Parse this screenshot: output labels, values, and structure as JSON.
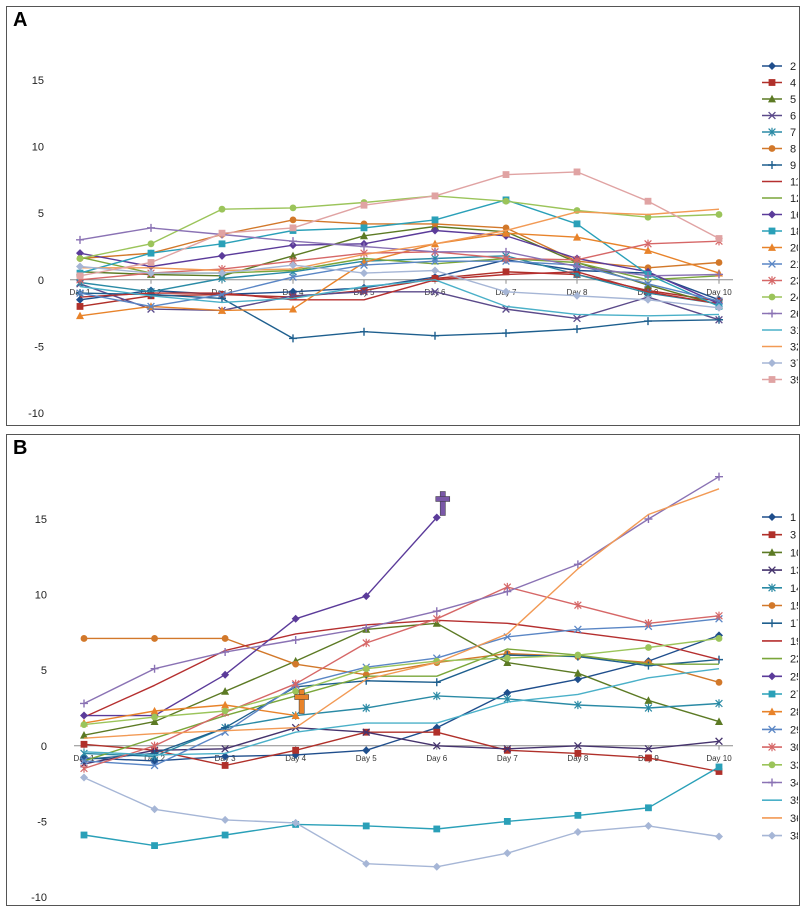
{
  "chart_data": [
    {
      "panel": "A",
      "type": "line",
      "categories": [
        "Day 1",
        "Day 2",
        "Day 3",
        "Day 4",
        "Day 5",
        "Day 6",
        "Day 7",
        "Day 8",
        "Day 9",
        "Day 10"
      ],
      "ylim": [
        -10,
        15
      ],
      "yticks": [
        -10,
        -5,
        0,
        5,
        10,
        15
      ],
      "grid": false,
      "legend": "right",
      "series": [
        {
          "name": "2",
          "color": "#1f4e8c",
          "marker": "diamond",
          "values": [
            -1.5,
            -0.8,
            -1.1,
            -0.9,
            -0.6,
            0.2,
            1.5,
            0.7,
            0.5,
            -1.5
          ]
        },
        {
          "name": "4",
          "color": "#b0302a",
          "marker": "square",
          "values": [
            -2.0,
            -1.2,
            -1.1,
            -1.3,
            -0.8,
            0.1,
            0.6,
            0.4,
            -0.8,
            -1.6
          ]
        },
        {
          "name": "5",
          "color": "#5c7a24",
          "marker": "triangle",
          "values": [
            0.6,
            0.4,
            0.3,
            1.8,
            3.3,
            4.0,
            3.6,
            1.3,
            -0.4,
            -1.9
          ]
        },
        {
          "name": "6",
          "color": "#5b4a8a",
          "marker": "x",
          "values": [
            -0.3,
            -2.2,
            -2.3,
            -1.2,
            -0.9,
            -0.9,
            -2.2,
            -2.9,
            -1.3,
            -3.0
          ]
        },
        {
          "name": "7",
          "color": "#2a8aa5",
          "marker": "star",
          "values": [
            -0.2,
            -0.9,
            0.1,
            0.6,
            1.4,
            1.6,
            1.8,
            0.4,
            -1.0,
            -1.8
          ]
        },
        {
          "name": "8",
          "color": "#d2782a",
          "marker": "circle",
          "values": [
            1.6,
            2.0,
            3.4,
            4.5,
            4.2,
            4.2,
            3.9,
            1.4,
            0.9,
            1.3
          ]
        },
        {
          "name": "9",
          "color": "#1e5f8e",
          "marker": "plus",
          "values": [
            -1.0,
            -1.1,
            -1.4,
            -4.4,
            -3.9,
            -4.2,
            -4.0,
            -3.7,
            -3.1,
            -3.0
          ]
        },
        {
          "name": "11",
          "color": "#b52f2f",
          "marker": "none",
          "values": [
            -1.3,
            -1.0,
            -1.0,
            -1.5,
            -1.5,
            0.0,
            0.4,
            0.6,
            -0.9,
            -1.8
          ]
        },
        {
          "name": "12",
          "color": "#7aa63a",
          "marker": "none",
          "values": [
            1.7,
            0.5,
            0.5,
            0.7,
            1.6,
            1.2,
            1.6,
            1.3,
            0.0,
            0.3
          ]
        },
        {
          "name": "16",
          "color": "#5b3b9a",
          "marker": "diamond",
          "values": [
            2.0,
            1.0,
            1.8,
            2.6,
            2.7,
            3.7,
            3.3,
            1.6,
            0.6,
            -1.8
          ]
        },
        {
          "name": "18",
          "color": "#2aa0b8",
          "marker": "square",
          "values": [
            0.5,
            2.0,
            2.7,
            3.7,
            3.9,
            4.5,
            6.0,
            4.2,
            0.4,
            -2.0
          ]
        },
        {
          "name": "20",
          "color": "#e8832a",
          "marker": "triangle",
          "values": [
            -2.7,
            -2.0,
            -2.3,
            -2.2,
            1.3,
            2.7,
            3.5,
            3.2,
            2.2,
            0.5
          ]
        },
        {
          "name": "21",
          "color": "#5a86c5",
          "marker": "x",
          "values": [
            -1.0,
            -2.0,
            -1.1,
            0.2,
            1.1,
            1.4,
            1.4,
            1.1,
            -0.3,
            -1.6
          ]
        },
        {
          "name": "23",
          "color": "#d66767",
          "marker": "star",
          "values": [
            0.0,
            0.5,
            0.8,
            1.4,
            2.0,
            2.1,
            1.6,
            1.5,
            2.7,
            2.9
          ]
        },
        {
          "name": "24",
          "color": "#9bc45a",
          "marker": "circle",
          "values": [
            1.6,
            2.7,
            5.3,
            5.4,
            5.8,
            6.3,
            5.9,
            5.2,
            4.7,
            4.9
          ]
        },
        {
          "name": "26",
          "color": "#8a72b4",
          "marker": "plus",
          "values": [
            3.0,
            3.9,
            3.4,
            2.9,
            2.5,
            2.1,
            2.1,
            1.0,
            0.3,
            0.4
          ]
        },
        {
          "name": "31",
          "color": "#4ab0c8",
          "marker": "none",
          "values": [
            -0.5,
            -1.2,
            -1.7,
            -1.4,
            -0.5,
            0.0,
            -2.0,
            -2.6,
            -2.7,
            -2.6
          ]
        },
        {
          "name": "32",
          "color": "#f29a55",
          "marker": "none",
          "values": [
            0.9,
            0.9,
            0.7,
            0.8,
            1.9,
            2.7,
            3.7,
            5.1,
            4.9,
            5.3
          ]
        },
        {
          "name": "37",
          "color": "#a6b6d6",
          "marker": "diamond",
          "values": [
            1.0,
            0.5,
            0.5,
            1.1,
            0.5,
            0.7,
            -0.9,
            -1.2,
            -1.5,
            -2.1
          ]
        },
        {
          "name": "39",
          "color": "#e0a3a3",
          "marker": "square",
          "values": [
            0.3,
            1.3,
            3.5,
            3.9,
            5.6,
            6.3,
            7.9,
            8.1,
            5.9,
            3.1
          ]
        }
      ]
    },
    {
      "panel": "B",
      "type": "line",
      "categories": [
        "Day 1",
        "Day 2",
        "Day 3",
        "Day 4",
        "Day 5",
        "Day 6",
        "Day 7",
        "Day 8",
        "Day 9",
        "Day 10"
      ],
      "ylim": [
        -10,
        15
      ],
      "yticks": [
        -10,
        -5,
        0,
        5,
        10,
        15
      ],
      "grid": false,
      "legend": "right",
      "annotations": [
        {
          "type": "cross",
          "label": "death",
          "series": "25",
          "category": "Day 6",
          "color": "#7a58a8"
        },
        {
          "type": "cross",
          "label": "death",
          "series": "28",
          "category": "Day 4",
          "color": "#e8832a"
        }
      ],
      "series": [
        {
          "name": "1",
          "color": "#1f4e8c",
          "marker": "diamond",
          "values": [
            -0.8,
            -1.0,
            -0.7,
            -0.6,
            -0.3,
            1.2,
            3.5,
            4.4,
            5.6,
            7.3
          ]
        },
        {
          "name": "3",
          "color": "#b0302a",
          "marker": "square",
          "values": [
            0.1,
            -0.3,
            -1.3,
            -0.3,
            0.9,
            0.9,
            -0.3,
            -0.5,
            -0.8,
            -1.7
          ]
        },
        {
          "name": "10",
          "color": "#5c7a24",
          "marker": "triangle",
          "values": [
            0.7,
            1.6,
            3.6,
            5.6,
            7.7,
            8.1,
            5.5,
            4.8,
            3.0,
            1.6
          ]
        },
        {
          "name": "13",
          "color": "#45336d",
          "marker": "x",
          "values": [
            -1.2,
            -0.3,
            -0.2,
            1.2,
            0.9,
            0.0,
            -0.2,
            0.0,
            -0.2,
            0.3
          ]
        },
        {
          "name": "14",
          "color": "#2a8aa5",
          "marker": "star",
          "values": [
            -0.5,
            -0.7,
            1.2,
            2.0,
            2.5,
            3.3,
            3.1,
            2.7,
            2.5,
            2.8
          ]
        },
        {
          "name": "15",
          "color": "#d2782a",
          "marker": "circle",
          "values": [
            7.1,
            7.1,
            7.1,
            5.4,
            4.7,
            5.5,
            6.1,
            5.9,
            5.5,
            4.2
          ]
        },
        {
          "name": "17",
          "color": "#1e5f8e",
          "marker": "plus",
          "values": [
            -0.9,
            -0.5,
            1.2,
            3.9,
            4.3,
            4.2,
            6.0,
            5.9,
            5.3,
            5.7
          ]
        },
        {
          "name": "19",
          "color": "#b52f2f",
          "marker": "none",
          "values": [
            1.9,
            4.0,
            6.3,
            7.4,
            8.0,
            8.3,
            8.1,
            7.5,
            6.9,
            5.7
          ]
        },
        {
          "name": "22",
          "color": "#7aa63a",
          "marker": "none",
          "values": [
            -1.0,
            0.5,
            2.0,
            3.3,
            4.6,
            4.6,
            6.4,
            6.0,
            5.4,
            5.4
          ]
        },
        {
          "name": "25",
          "color": "#5b3b9a",
          "marker": "diamond",
          "values": [
            2.0,
            2.0,
            4.7,
            8.4,
            9.9,
            15.1,
            null,
            null,
            null,
            null
          ]
        },
        {
          "name": "27",
          "color": "#2aa0b8",
          "marker": "square",
          "values": [
            -5.9,
            -6.6,
            -5.9,
            -5.2,
            -5.3,
            -5.5,
            -5.0,
            -4.6,
            -4.1,
            -1.4
          ]
        },
        {
          "name": "28",
          "color": "#e8832a",
          "marker": "triangle",
          "values": [
            1.5,
            2.3,
            2.7,
            2.0,
            null,
            null,
            null,
            null,
            null,
            null
          ]
        },
        {
          "name": "29",
          "color": "#5a86c5",
          "marker": "x",
          "values": [
            -1.0,
            -1.3,
            0.9,
            4.0,
            5.2,
            5.8,
            7.2,
            7.7,
            7.9,
            8.4
          ]
        },
        {
          "name": "30",
          "color": "#d66767",
          "marker": "star",
          "values": [
            -1.5,
            0.0,
            2.2,
            4.1,
            6.8,
            8.4,
            10.5,
            9.3,
            8.1,
            8.6
          ]
        },
        {
          "name": "33",
          "color": "#9bc45a",
          "marker": "circle",
          "values": [
            1.4,
            1.9,
            2.3,
            3.6,
            5.1,
            5.6,
            5.8,
            6.0,
            6.5,
            7.1
          ]
        },
        {
          "name": "34",
          "color": "#8a72b4",
          "marker": "plus",
          "values": [
            2.8,
            5.1,
            6.2,
            7.0,
            7.8,
            8.9,
            10.2,
            12.0,
            15.0,
            17.8
          ]
        },
        {
          "name": "35",
          "color": "#4ab0c8",
          "marker": "none",
          "values": [
            -0.4,
            -0.6,
            -0.5,
            0.9,
            1.5,
            1.5,
            2.9,
            3.4,
            4.5,
            5.1
          ]
        },
        {
          "name": "36",
          "color": "#f29a55",
          "marker": "none",
          "values": [
            0.5,
            0.8,
            1.0,
            1.2,
            4.4,
            5.5,
            7.4,
            11.7,
            15.3,
            17.0
          ]
        },
        {
          "name": "38",
          "color": "#a6b6d6",
          "marker": "diamond",
          "values": [
            -2.1,
            -4.2,
            -4.9,
            -5.1,
            -7.8,
            -8.0,
            -7.1,
            -5.7,
            -5.3,
            -6.0
          ]
        }
      ]
    }
  ]
}
